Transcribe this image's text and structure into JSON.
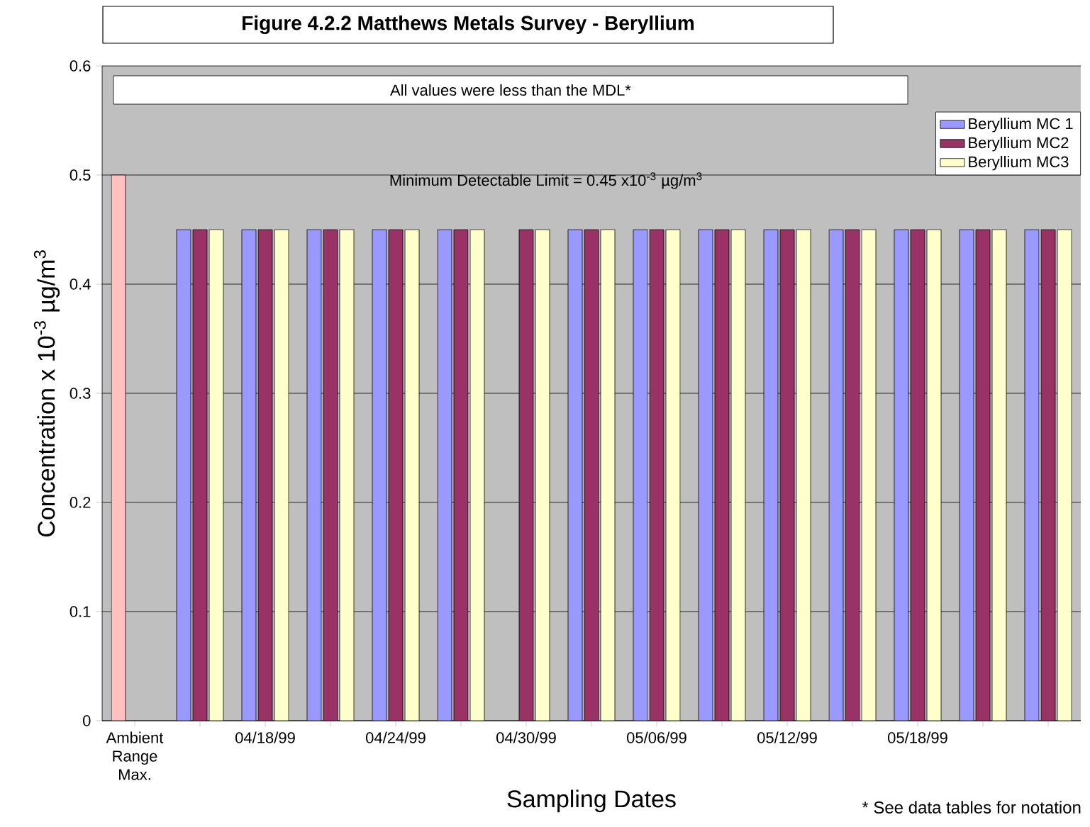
{
  "chart_data": {
    "type": "bar",
    "title": "**Figure 4.2.2 Matthews Metals Survey - Beryllium**",
    "xlabel": "Sampling Dates",
    "ylabel": "Concentration x 10$^{-3}$ µg/m$^{3}$",
    "annotations": [
      "All values were less than the MDL*",
      "Minimum Detectable Limit = 0.45 x10$^{-3}$ µg/m$^{3}$",
      "* See data tables for notation"
    ],
    "categories": [
      "Ambient Range Max.",
      null,
      "04/18/99",
      null,
      "04/24/99",
      null,
      "04/30/99",
      null,
      "05/06/99",
      null,
      "05/12/99",
      null,
      "05/18/99",
      null,
      null
    ],
    "series": [
      {
        "name": "Beryllium MC 1",
        "color": "#9999ff",
        "colors": [
          "#ffc0c0",
          "#9999ff",
          "#9999ff",
          "#9999ff",
          "#9999ff",
          "#9999ff",
          "#9999ff",
          "#9999ff",
          "#9999ff",
          "#9999ff",
          "#9999ff",
          "#9999ff",
          "#9999ff",
          "#9999ff",
          "#9999ff"
        ],
        "values": [
          0.5,
          0.45,
          0.45,
          0.45,
          0.45,
          0.45,
          null,
          0.45,
          0.45,
          0.45,
          0.45,
          0.45,
          0.45,
          0.45,
          0.45
        ]
      },
      {
        "name": "Beryllium MC2",
        "color": "#993366",
        "values": [
          null,
          0.45,
          0.45,
          0.45,
          0.45,
          0.45,
          0.45,
          0.45,
          0.45,
          0.45,
          0.45,
          0.45,
          0.45,
          0.45,
          0.45
        ]
      },
      {
        "name": "Beryllium MC3",
        "color": "#ffffcc",
        "values": [
          null,
          0.45,
          0.45,
          0.45,
          0.45,
          0.45,
          0.45,
          0.45,
          0.45,
          0.45,
          0.45,
          0.45,
          0.45,
          0.45,
          0.45
        ]
      }
    ],
    "ylim": [
      0,
      0.6
    ],
    "yticks": [
      0,
      0.1,
      0.2,
      0.3,
      0.4,
      0.5,
      0.6
    ],
    "grid": "y",
    "legend": "top right"
  }
}
